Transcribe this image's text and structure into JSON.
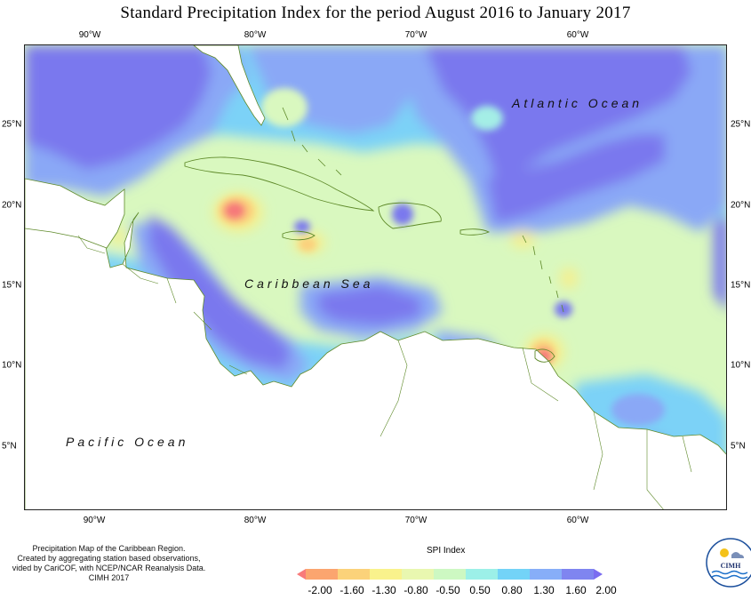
{
  "title": "Standard Precipitation Index for the period August 2016 to January 2017",
  "axes": {
    "longitude_ticks": [
      "90°W",
      "80°W",
      "70°W",
      "60°W"
    ],
    "latitude_ticks": [
      "25°N",
      "20°N",
      "15°N",
      "10°N",
      "5°N"
    ]
  },
  "labels": {
    "atlantic": "Atlantic Ocean",
    "caribbean": "Caribbean Sea",
    "pacific": "Pacific Ocean"
  },
  "credits": [
    "Precipitation Map of the Caribbean Region.",
    "Created by aggregating station based observations,",
    "vided by CariCOF, with NCEP/NCAR Reanalysis Data.",
    "CIMH 2017"
  ],
  "legend": {
    "title": "SPI Index",
    "values": [
      "-2.00",
      "-1.60",
      "-1.30",
      "-0.80",
      "-0.50",
      "0.50",
      "0.80",
      "1.30",
      "1.60",
      "2.00"
    ],
    "colors": [
      "#f87a7a",
      "#fba56f",
      "#fbd27a",
      "#f9f28c",
      "#e9f7b0",
      "#cdf8c2",
      "#9cf0e8",
      "#73d3f7",
      "#87aef8",
      "#7f85f0",
      "#7a6cf0"
    ]
  },
  "colors": {
    "very_wet": "#7a78ee",
    "wet": "#8aa8f6",
    "moderately_wet": "#7bd2f7",
    "slightly_wet": "#a4eee6",
    "near_normal": "#d9f8bf",
    "slightly_dry": "#f5ef8e",
    "moderately_dry": "#fbcf7c",
    "dry": "#f99a72",
    "very_dry": "#f6797a",
    "coast": "#5f8a2a"
  },
  "logo": {
    "text": "CIMH"
  }
}
